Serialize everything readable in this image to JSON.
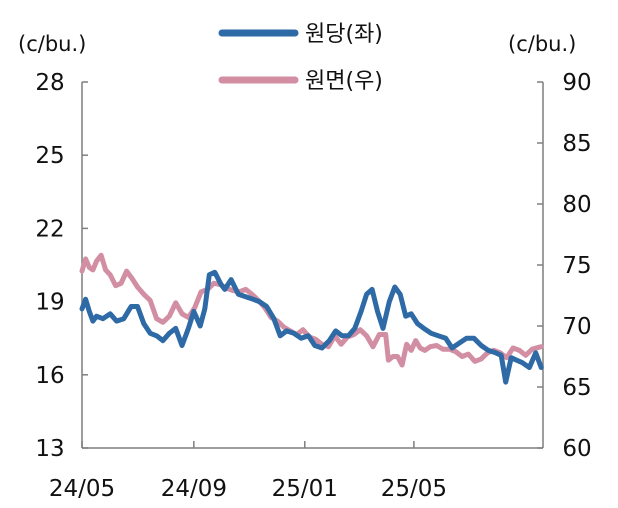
{
  "chart_data": {
    "type": "line",
    "title": "",
    "grid": false,
    "legend_position": "top-center",
    "left_axis": {
      "unit": "(c/bu.)",
      "ylim": [
        13,
        28
      ],
      "ticks": [
        13,
        16,
        19,
        22,
        25,
        28
      ]
    },
    "right_axis": {
      "unit": "(c/bu.)",
      "ylim": [
        60,
        90
      ],
      "ticks": [
        60,
        65,
        70,
        75,
        80,
        85,
        90
      ]
    },
    "x_axis": {
      "xlim": [
        "2024-05-01",
        "2025-09-20"
      ],
      "tick_labels": [
        "24/05",
        "24/09",
        "25/01",
        "25/05"
      ],
      "tick_dates": [
        "2024-05-01",
        "2024-09-01",
        "2025-01-01",
        "2025-05-01"
      ]
    },
    "series": [
      {
        "name": "원당(좌)",
        "axis": "left",
        "color": "#2e6aa5",
        "x": [
          "2024-05-01",
          "2024-05-05",
          "2024-05-09",
          "2024-05-13",
          "2024-05-17",
          "2024-05-24",
          "2024-06-01",
          "2024-06-08",
          "2024-06-16",
          "2024-06-24",
          "2024-07-01",
          "2024-07-08",
          "2024-07-15",
          "2024-07-22",
          "2024-07-29",
          "2024-08-05",
          "2024-08-12",
          "2024-08-19",
          "2024-08-26",
          "2024-09-01",
          "2024-09-08",
          "2024-09-13",
          "2024-09-18",
          "2024-09-24",
          "2024-10-01",
          "2024-10-05",
          "2024-10-12",
          "2024-10-20",
          "2024-10-28",
          "2024-11-05",
          "2024-11-12",
          "2024-11-20",
          "2024-11-28",
          "2024-12-05",
          "2024-12-12",
          "2024-12-20",
          "2024-12-28",
          "2025-01-05",
          "2025-01-12",
          "2025-01-20",
          "2025-01-28",
          "2025-02-04",
          "2025-02-11",
          "2025-02-18",
          "2025-02-25",
          "2025-03-04",
          "2025-03-10",
          "2025-03-16",
          "2025-03-22",
          "2025-03-28",
          "2025-04-04",
          "2025-04-10",
          "2025-04-16",
          "2025-04-22",
          "2025-04-28",
          "2025-05-05",
          "2025-05-12",
          "2025-05-20",
          "2025-05-28",
          "2025-06-05",
          "2025-06-12",
          "2025-06-20",
          "2025-06-28",
          "2025-07-06",
          "2025-07-14",
          "2025-07-22",
          "2025-07-30",
          "2025-08-05",
          "2025-08-10",
          "2025-08-16",
          "2025-08-22",
          "2025-08-28",
          "2025-09-05",
          "2025-09-12",
          "2025-09-18"
        ],
        "values": [
          18.7,
          19.1,
          18.6,
          18.2,
          18.4,
          18.3,
          18.5,
          18.2,
          18.3,
          18.8,
          18.8,
          18.1,
          17.7,
          17.6,
          17.4,
          17.7,
          17.9,
          17.2,
          17.9,
          18.6,
          18.0,
          18.7,
          20.1,
          20.2,
          19.7,
          19.5,
          19.9,
          19.3,
          19.2,
          19.1,
          19.0,
          18.8,
          18.3,
          17.6,
          17.8,
          17.7,
          17.5,
          17.6,
          17.2,
          17.1,
          17.4,
          17.8,
          17.6,
          17.6,
          17.9,
          18.6,
          19.3,
          19.5,
          18.6,
          17.9,
          19.0,
          19.6,
          19.3,
          18.4,
          18.5,
          18.1,
          17.9,
          17.7,
          17.6,
          17.5,
          17.1,
          17.3,
          17.5,
          17.5,
          17.2,
          17.0,
          16.9,
          16.8,
          15.7,
          16.7,
          16.6,
          16.5,
          16.3,
          16.9,
          16.3
        ]
      },
      {
        "name": "원면(우)",
        "axis": "right",
        "color": "#d28ea3",
        "x": [
          "2024-05-01",
          "2024-05-05",
          "2024-05-09",
          "2024-05-13",
          "2024-05-17",
          "2024-05-22",
          "2024-05-27",
          "2024-06-01",
          "2024-06-07",
          "2024-06-13",
          "2024-06-19",
          "2024-06-25",
          "2024-07-01",
          "2024-07-08",
          "2024-07-15",
          "2024-07-22",
          "2024-07-29",
          "2024-08-05",
          "2024-08-12",
          "2024-08-19",
          "2024-08-26",
          "2024-09-02",
          "2024-09-09",
          "2024-09-16",
          "2024-09-23",
          "2024-09-30",
          "2024-10-07",
          "2024-10-14",
          "2024-10-21",
          "2024-10-28",
          "2024-11-04",
          "2024-11-11",
          "2024-11-18",
          "2024-11-25",
          "2024-12-02",
          "2024-12-09",
          "2024-12-16",
          "2024-12-23",
          "2024-12-30",
          "2025-01-06",
          "2025-01-13",
          "2025-01-20",
          "2025-01-27",
          "2025-02-03",
          "2025-02-10",
          "2025-02-17",
          "2025-02-24",
          "2025-03-03",
          "2025-03-10",
          "2025-03-17",
          "2025-03-24",
          "2025-03-31",
          "2025-04-03",
          "2025-04-08",
          "2025-04-13",
          "2025-04-18",
          "2025-04-23",
          "2025-04-28",
          "2025-05-03",
          "2025-05-08",
          "2025-05-13",
          "2025-05-19",
          "2025-05-26",
          "2025-06-02",
          "2025-06-09",
          "2025-06-16",
          "2025-06-23",
          "2025-06-30",
          "2025-07-07",
          "2025-07-14",
          "2025-07-21",
          "2025-07-28",
          "2025-08-04",
          "2025-08-11",
          "2025-08-18",
          "2025-08-25",
          "2025-09-01",
          "2025-09-08",
          "2025-09-18"
        ],
        "values": [
          74.5,
          75.5,
          74.8,
          74.6,
          75.3,
          75.8,
          74.6,
          74.2,
          73.3,
          73.5,
          74.5,
          73.9,
          73.2,
          72.6,
          72.1,
          70.6,
          70.3,
          70.8,
          71.9,
          71.0,
          70.7,
          71.5,
          72.8,
          73.0,
          73.5,
          73.4,
          73.1,
          72.9,
          72.8,
          73.0,
          72.6,
          72.1,
          71.5,
          70.7,
          70.4,
          69.9,
          69.6,
          69.3,
          69.7,
          69.1,
          68.9,
          68.5,
          68.3,
          69.2,
          68.5,
          69.1,
          69.3,
          69.7,
          69.2,
          68.3,
          69.3,
          69.3,
          67.2,
          67.5,
          67.5,
          66.8,
          68.5,
          68.0,
          68.8,
          68.2,
          68.0,
          68.3,
          68.4,
          68.1,
          68.1,
          67.9,
          67.5,
          67.7,
          67.1,
          67.3,
          67.8,
          68.0,
          67.8,
          67.4,
          68.2,
          68.0,
          67.6,
          68.1,
          68.3
        ]
      }
    ]
  }
}
